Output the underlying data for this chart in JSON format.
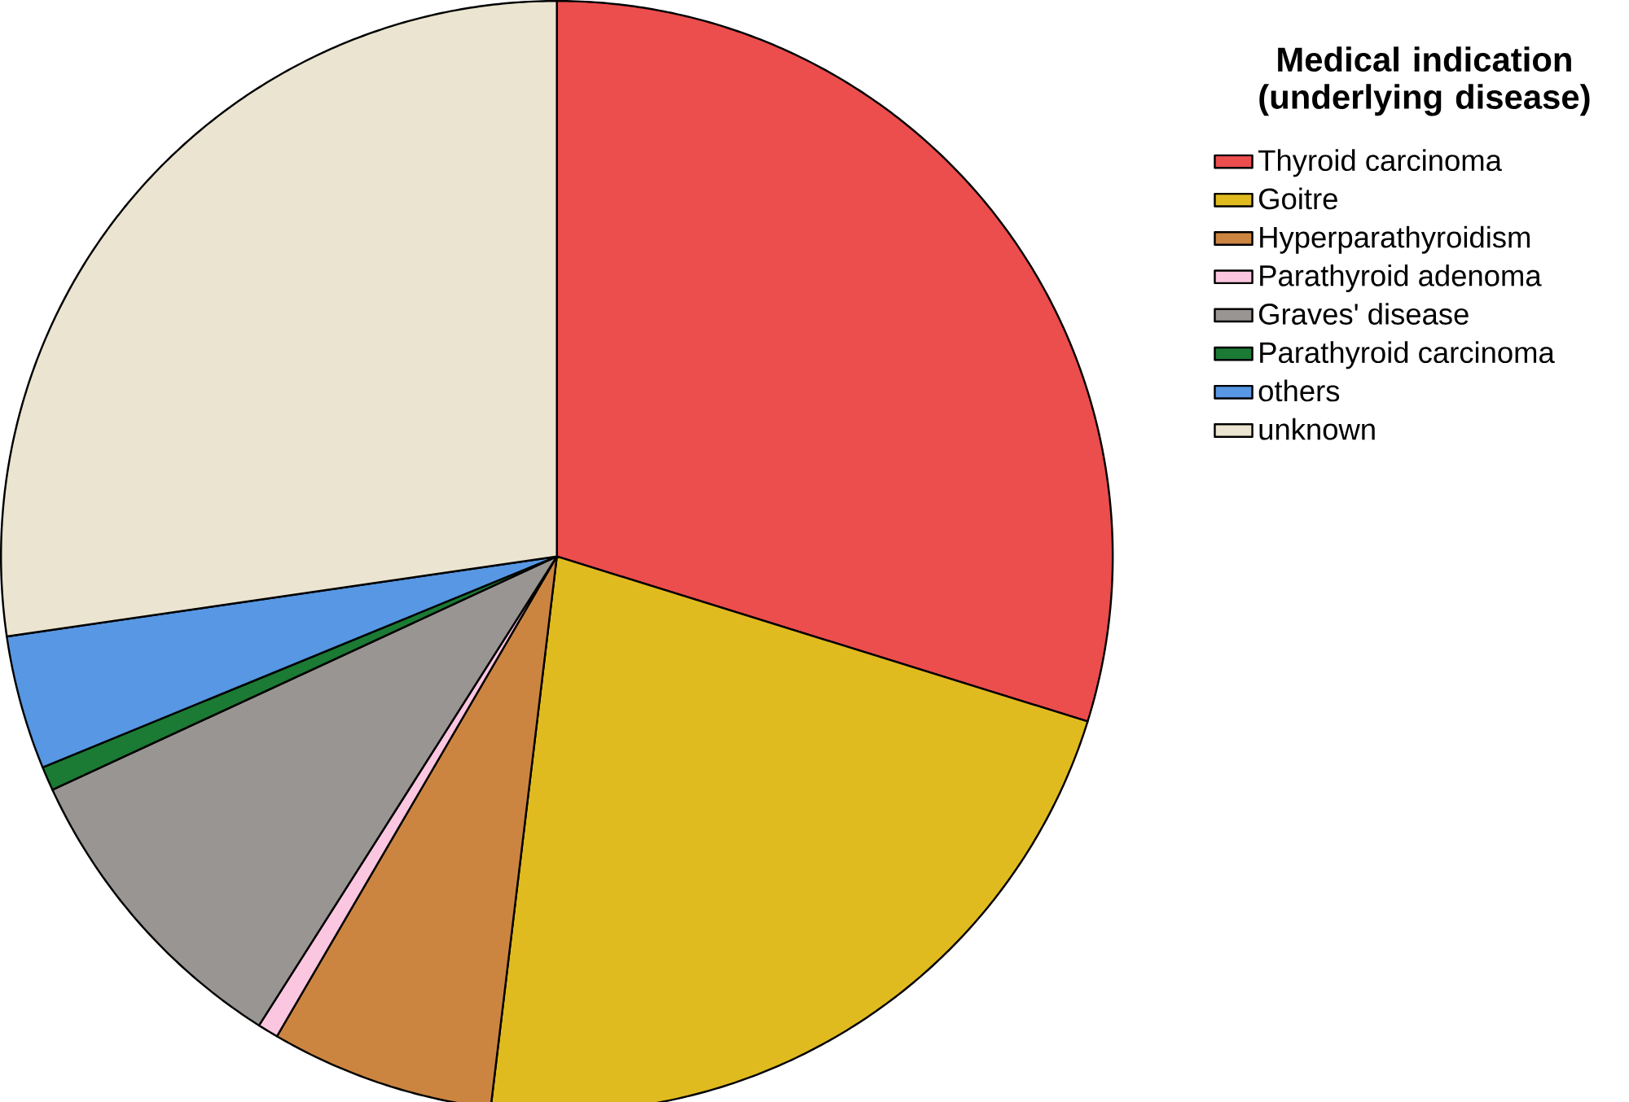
{
  "chart_data": {
    "type": "pie",
    "legend_title": "Medical indication (underlying disease)",
    "legend": "top right",
    "categories": [
      "Thyroid carcinoma",
      "Goitre",
      "Hyperparathyroidism",
      "Parathyroid adenoma",
      "Graves' disease",
      "Parathyroid carcinoma",
      "others",
      "unknown"
    ],
    "values": [
      29.8,
      22.1,
      6.5,
      0.6,
      9.1,
      0.7,
      3.9,
      27.3
    ],
    "colors": [
      "#ec4d4d",
      "#e0bb1f",
      "#cc8540",
      "#fbc6e0",
      "#989592",
      "#1b7a34",
      "#5797e3",
      "#ebe4d0"
    ]
  }
}
